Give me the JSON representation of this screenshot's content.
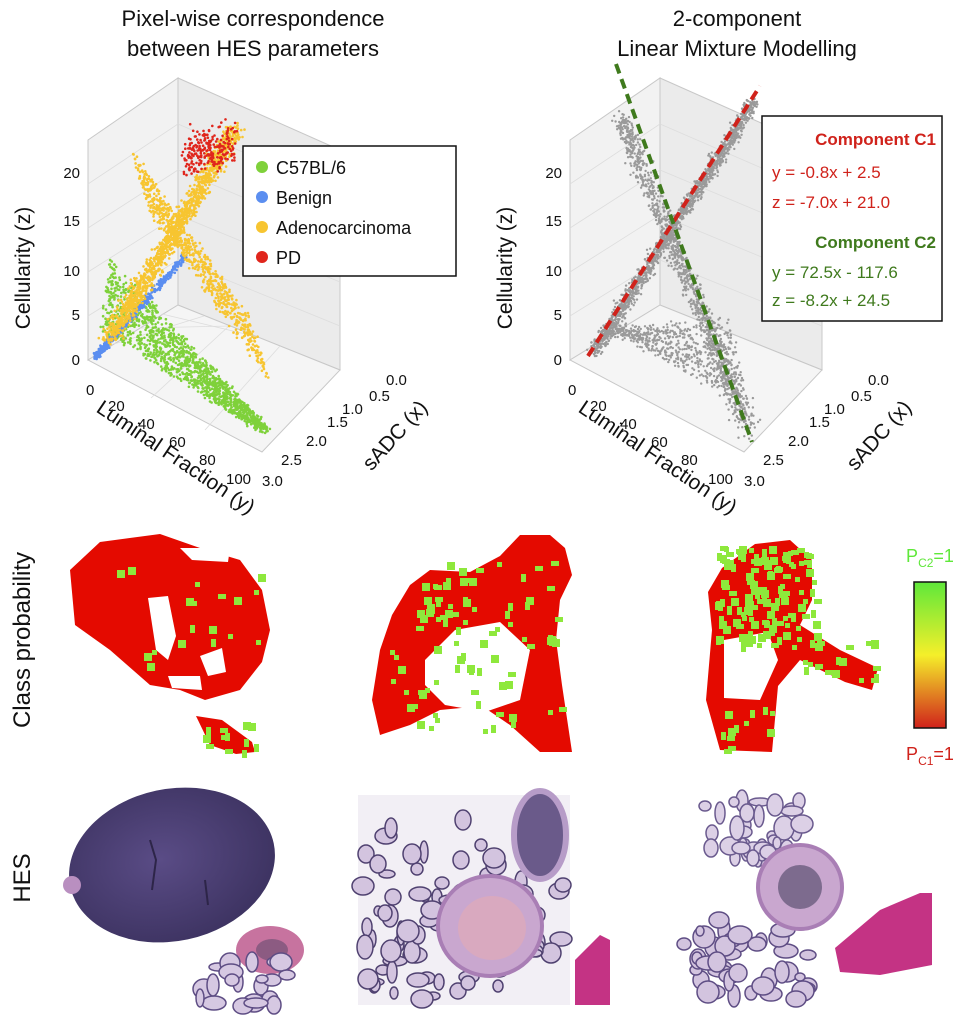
{
  "chart_data": [
    {
      "type": "scatter",
      "title": [
        "Pixel-wise correspondence",
        "between HES parameters"
      ],
      "xlabel": "sADC (x)",
      "ylabel": "Luminal Fraction (y)",
      "zlabel": "Cellularity (z)",
      "x_ticks": [
        "0.0",
        "0.5",
        "1.0",
        "1.5",
        "2.0",
        "2.5",
        "3.0"
      ],
      "y_ticks": [
        "0",
        "20",
        "40",
        "60",
        "80",
        "100"
      ],
      "z_ticks": [
        "0",
        "5",
        "10",
        "15",
        "20"
      ],
      "xlim": [
        0,
        3
      ],
      "ylim": [
        0,
        100
      ],
      "zlim": [
        0,
        20
      ],
      "legend_position": "top-right",
      "series": [
        {
          "name": "C57BL/6",
          "color": "#7fd13b"
        },
        {
          "name": "Benign",
          "color": "#5b8ef0"
        },
        {
          "name": "Adenocarcinoma",
          "color": "#f7c531"
        },
        {
          "name": "PD",
          "color": "#e0261c"
        }
      ]
    },
    {
      "type": "scatter",
      "title": [
        "2-component",
        "Linear Mixture Modelling"
      ],
      "xlabel": "sADC (x)",
      "ylabel": "Luminal Fraction (y)",
      "zlabel": "Cellularity (z)",
      "x_ticks": [
        "0.0",
        "0.5",
        "1.0",
        "1.5",
        "2.0",
        "2.5",
        "3.0"
      ],
      "y_ticks": [
        "0",
        "20",
        "40",
        "60",
        "80",
        "100"
      ],
      "z_ticks": [
        "0",
        "5",
        "10",
        "15",
        "20"
      ],
      "xlim": [
        0,
        3
      ],
      "ylim": [
        0,
        100
      ],
      "zlim": [
        0,
        20
      ],
      "point_color": "#9a9a9a",
      "components": [
        {
          "name": "Component C1",
          "color": "#d0221b",
          "eq_y": "y =  -0.8x + 2.5",
          "eq_z": "z =  -7.0x + 21.0",
          "y_slope": -0.8,
          "y_intercept": 2.5,
          "z_slope": -7.0,
          "z_intercept": 21.0
        },
        {
          "name": "Component C2",
          "color": "#3f7a1d",
          "eq_y": "y = 72.5x - 117.6",
          "eq_z": "z =  -8.2x + 24.5",
          "y_slope": 72.5,
          "y_intercept": -117.6,
          "z_slope": -8.2,
          "z_intercept": 24.5
        }
      ]
    }
  ],
  "rows": {
    "class_probability": "Class probability",
    "hes": "HES"
  },
  "colorbar": {
    "top_label": "P",
    "top_sub": "C2",
    "top_eq": "=1",
    "bottom_label": "P",
    "bottom_sub": "C1",
    "bottom_eq": "=1",
    "top_color": "#5fe83a",
    "bottom_color": "#d0221b"
  },
  "colors": {
    "class_red": "#e40a00",
    "class_green": "#8ee83c",
    "hes_dark": "#4b3f72",
    "hes_pink": "#c83d8a"
  }
}
